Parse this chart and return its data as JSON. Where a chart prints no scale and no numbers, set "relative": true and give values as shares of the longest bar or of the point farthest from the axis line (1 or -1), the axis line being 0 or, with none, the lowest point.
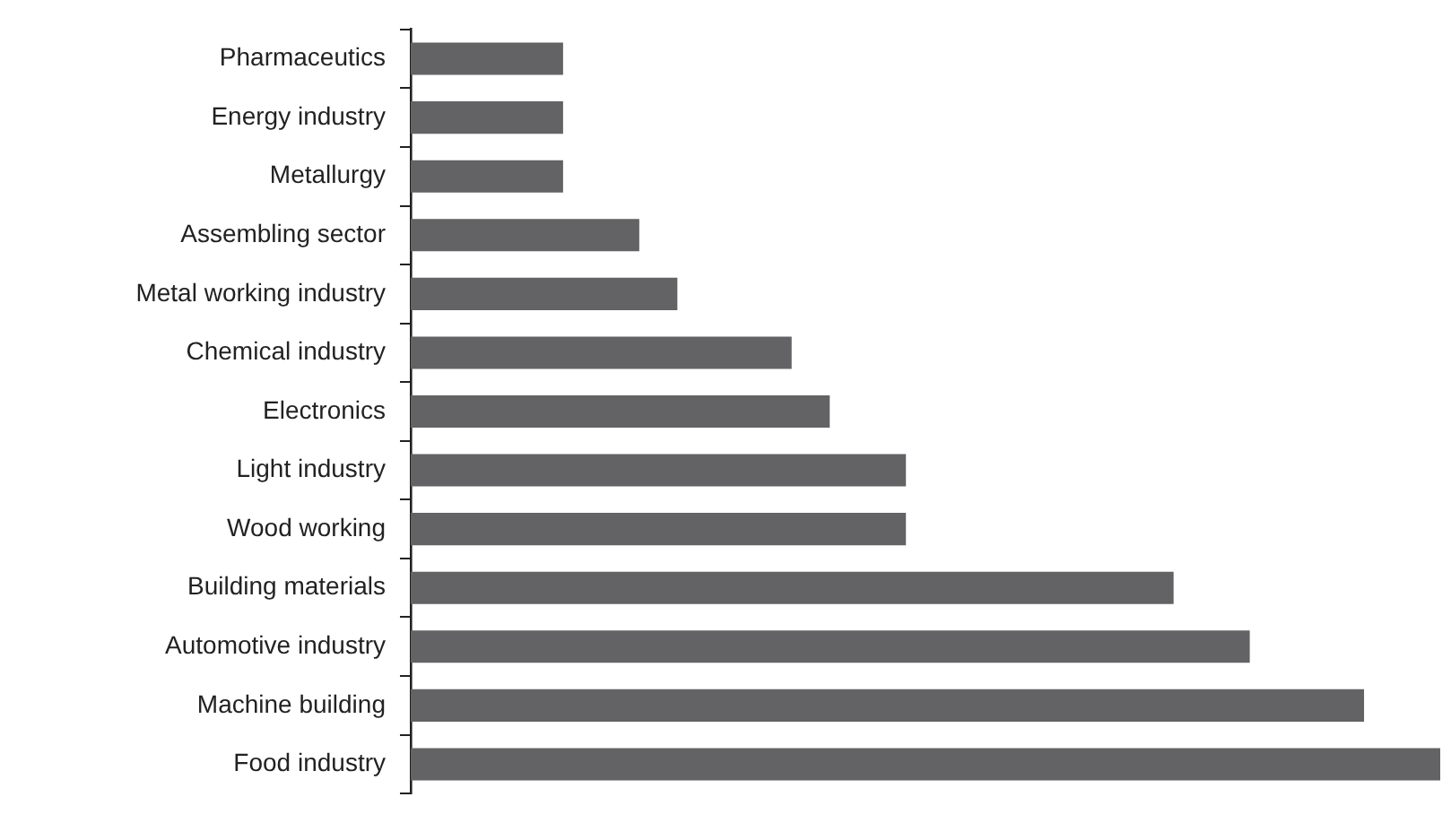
{
  "chart_data": {
    "type": "bar",
    "orientation": "horizontal",
    "relative": true,
    "legend": false,
    "grid": false,
    "categories": [
      "Pharmaceutics",
      "Energy industry",
      "Metallurgy",
      "Assembling sector",
      "Metal working industry",
      "Chemical industry",
      "Electronics",
      "Light industry",
      "Wood working",
      "Building materials",
      "Automotive industry",
      "Machine building",
      "Food industry"
    ],
    "values": [
      0.148,
      0.148,
      0.148,
      0.222,
      0.259,
      0.37,
      0.407,
      0.481,
      0.481,
      0.741,
      0.815,
      0.926,
      1
    ],
    "color": "#636366"
  }
}
